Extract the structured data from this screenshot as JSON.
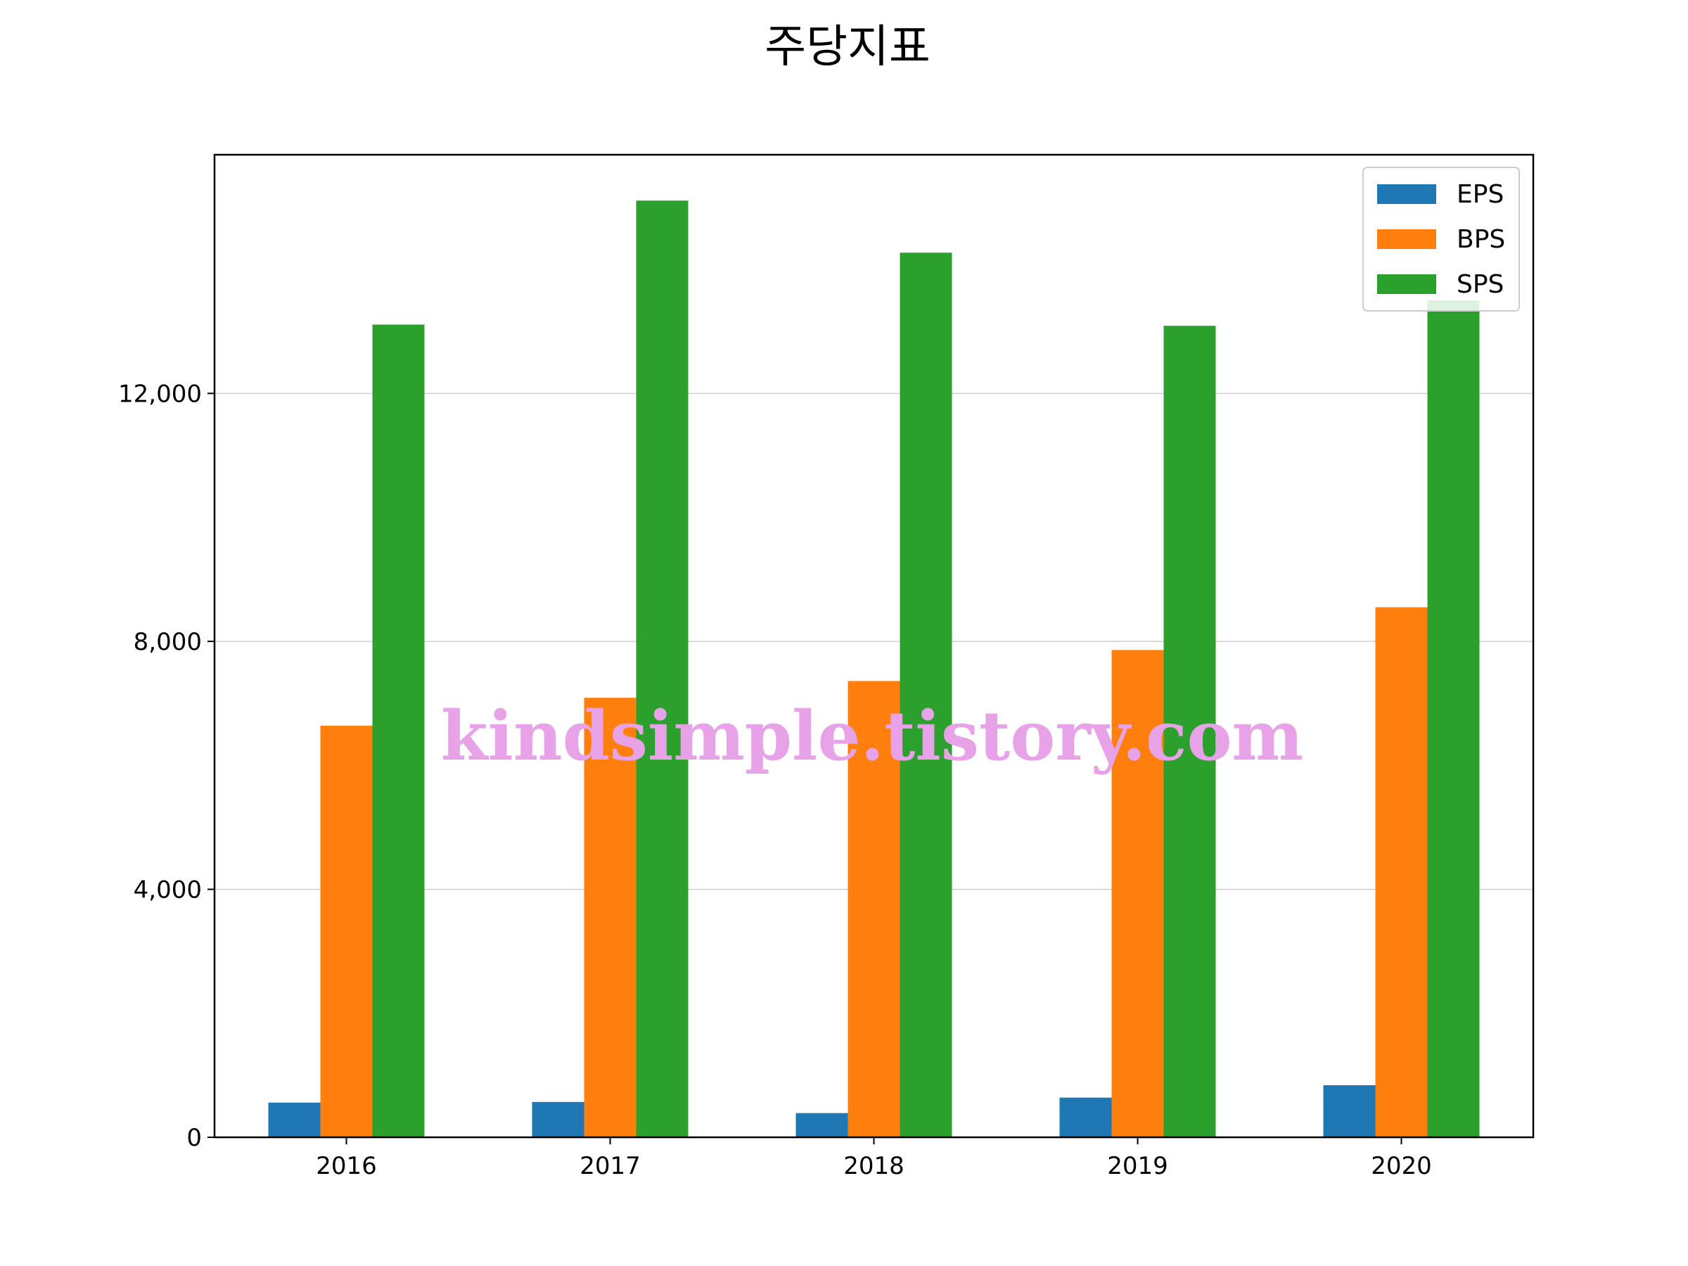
{
  "chart_data": {
    "type": "bar",
    "title": "주당지표",
    "xlabel": "",
    "ylabel": "",
    "categories": [
      "2016",
      "2017",
      "2018",
      "2019",
      "2020"
    ],
    "series": [
      {
        "name": "EPS",
        "color": "#1f77b4",
        "values": [
          560,
          570,
          390,
          640,
          840
        ]
      },
      {
        "name": "BPS",
        "color": "#ff7f0e",
        "values": [
          6640,
          7090,
          7360,
          7860,
          8550
        ]
      },
      {
        "name": "SPS",
        "color": "#2ca02c",
        "values": [
          13110,
          15110,
          14270,
          13090,
          13500
        ]
      }
    ],
    "ylim": [
      0,
      15850
    ],
    "yticks": [
      0,
      4000,
      8000,
      12000
    ],
    "ytick_labels": [
      "0",
      "4,000",
      "8,000",
      "12,000"
    ],
    "grid": "y",
    "legend_position": "top-right"
  },
  "watermark": "kindsimple.tistory.com"
}
